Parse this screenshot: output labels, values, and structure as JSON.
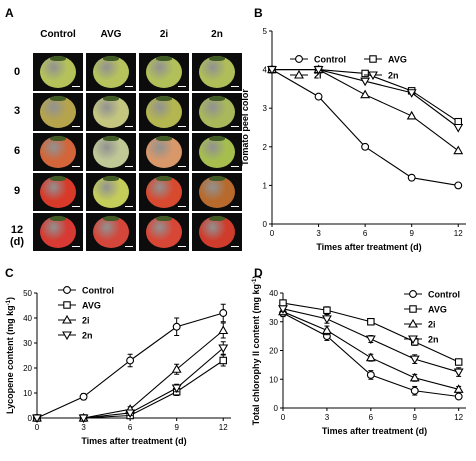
{
  "panels": {
    "A": {
      "letter": "A",
      "columns": [
        "Control",
        "AVG",
        "2i",
        "2n"
      ],
      "rows": [
        "0",
        "3",
        "6",
        "9",
        "12\n(d)"
      ],
      "colors": [
        [
          "#b5c25a",
          "#b6c35c",
          "#b2c05a",
          "#afbe58"
        ],
        [
          "#b6a44c",
          "#c4c680",
          "#b4b650",
          "#a8b85a"
        ],
        [
          "#d2663a",
          "#c0c896",
          "#d9986a",
          "#a6be4e"
        ],
        [
          "#d83a2a",
          "#c4cc5a",
          "#d84a30",
          "#b86a2c"
        ],
        [
          "#d63a32",
          "#d4463a",
          "#d84636",
          "#d03c2c"
        ]
      ],
      "scale_label": "1 cm"
    },
    "B": {
      "letter": "B"
    },
    "C": {
      "letter": "C"
    },
    "D": {
      "letter": "D"
    }
  },
  "chart_data": [
    {
      "panel": "B",
      "type": "line",
      "x": [
        0,
        3,
        6,
        9,
        12
      ],
      "xticks": [
        "0",
        "3",
        "6",
        "9",
        "12"
      ],
      "yticks": [
        "0",
        "1",
        "2",
        "3",
        "4",
        "5"
      ],
      "xlim": [
        0,
        12.5
      ],
      "ylim": [
        0,
        5
      ],
      "xlabel": "Times after treatment (d)",
      "ylabel": "Tomato peel color",
      "legend_columns": 2,
      "series": [
        {
          "name": "Control",
          "marker": "circle",
          "values": [
            4,
            3.3,
            2.0,
            1.2,
            1.0
          ],
          "err": [
            0,
            0,
            0,
            0,
            0
          ]
        },
        {
          "name": "AVG",
          "marker": "square",
          "values": [
            4,
            4.0,
            3.9,
            3.45,
            2.65
          ],
          "err": [
            0,
            0,
            0,
            0,
            0
          ]
        },
        {
          "name": "2i",
          "marker": "triangle-up",
          "values": [
            4,
            4.0,
            3.35,
            2.8,
            1.9
          ],
          "err": [
            0,
            0,
            0,
            0,
            0
          ]
        },
        {
          "name": "2n",
          "marker": "triangle-down",
          "values": [
            4,
            4.0,
            3.7,
            3.4,
            2.5
          ],
          "err": [
            0,
            0,
            0,
            0,
            0
          ]
        }
      ]
    },
    {
      "panel": "C",
      "type": "line",
      "x": [
        0,
        3,
        6,
        9,
        12
      ],
      "xticks": [
        "0",
        "3",
        "6",
        "9",
        "12"
      ],
      "yticks": [
        "0",
        "10",
        "20",
        "30",
        "40",
        "50"
      ],
      "xlim": [
        0,
        12.5
      ],
      "ylim": [
        0,
        50
      ],
      "xlabel": "Times after treatment (d)",
      "ylabel": "Lycopene content (mg kg",
      "ylabel_sup": "-1",
      "ylabel_end": ")",
      "legend_columns": 1,
      "series": [
        {
          "name": "Control",
          "marker": "circle",
          "values": [
            0,
            8.5,
            23,
            36.5,
            42
          ],
          "err": [
            0.5,
            1.2,
            2.5,
            3.5,
            3.5
          ]
        },
        {
          "name": "AVG",
          "marker": "square",
          "values": [
            0,
            0,
            1,
            10.5,
            23
          ],
          "err": [
            0,
            0,
            0.8,
            1.5,
            2.2
          ]
        },
        {
          "name": "2i",
          "marker": "triangle-up",
          "values": [
            0,
            0,
            3.5,
            19.5,
            35
          ],
          "err": [
            0,
            0,
            1,
            2,
            3
          ]
        },
        {
          "name": "2n",
          "marker": "triangle-down",
          "values": [
            0,
            0,
            2,
            12,
            28
          ],
          "err": [
            0,
            0,
            1,
            1.5,
            2.5
          ]
        }
      ]
    },
    {
      "panel": "D",
      "type": "line",
      "x": [
        0,
        3,
        6,
        9,
        12
      ],
      "xticks": [
        "0",
        "3",
        "6",
        "9",
        "12"
      ],
      "yticks": [
        "0",
        "10",
        "20",
        "30",
        "40"
      ],
      "xlim": [
        0,
        12.5
      ],
      "ylim": [
        0,
        40
      ],
      "xlabel": "Times after treatment (d)",
      "ylabel": "Total chlorophy ll content (mg kg",
      "ylabel_sup": "-1",
      "ylabel_end": ")",
      "legend_columns": 1,
      "series": [
        {
          "name": "Control",
          "marker": "circle",
          "values": [
            33,
            25,
            11.5,
            6,
            4
          ],
          "err": [
            1.2,
            1.5,
            1.5,
            1.5,
            0.5
          ]
        },
        {
          "name": "AVG",
          "marker": "square",
          "values": [
            36.5,
            34,
            30,
            23,
            16
          ],
          "err": [
            1,
            1.2,
            1,
            1.2,
            1
          ]
        },
        {
          "name": "2i",
          "marker": "triangle-up",
          "values": [
            33.5,
            27,
            17.5,
            10.5,
            6.5
          ],
          "err": [
            1,
            1.5,
            1.2,
            1.2,
            1
          ]
        },
        {
          "name": "2n",
          "marker": "triangle-down",
          "values": [
            34.5,
            31,
            24,
            17,
            12.5
          ],
          "err": [
            1,
            1.5,
            1.2,
            1.5,
            1.5
          ]
        }
      ]
    }
  ]
}
